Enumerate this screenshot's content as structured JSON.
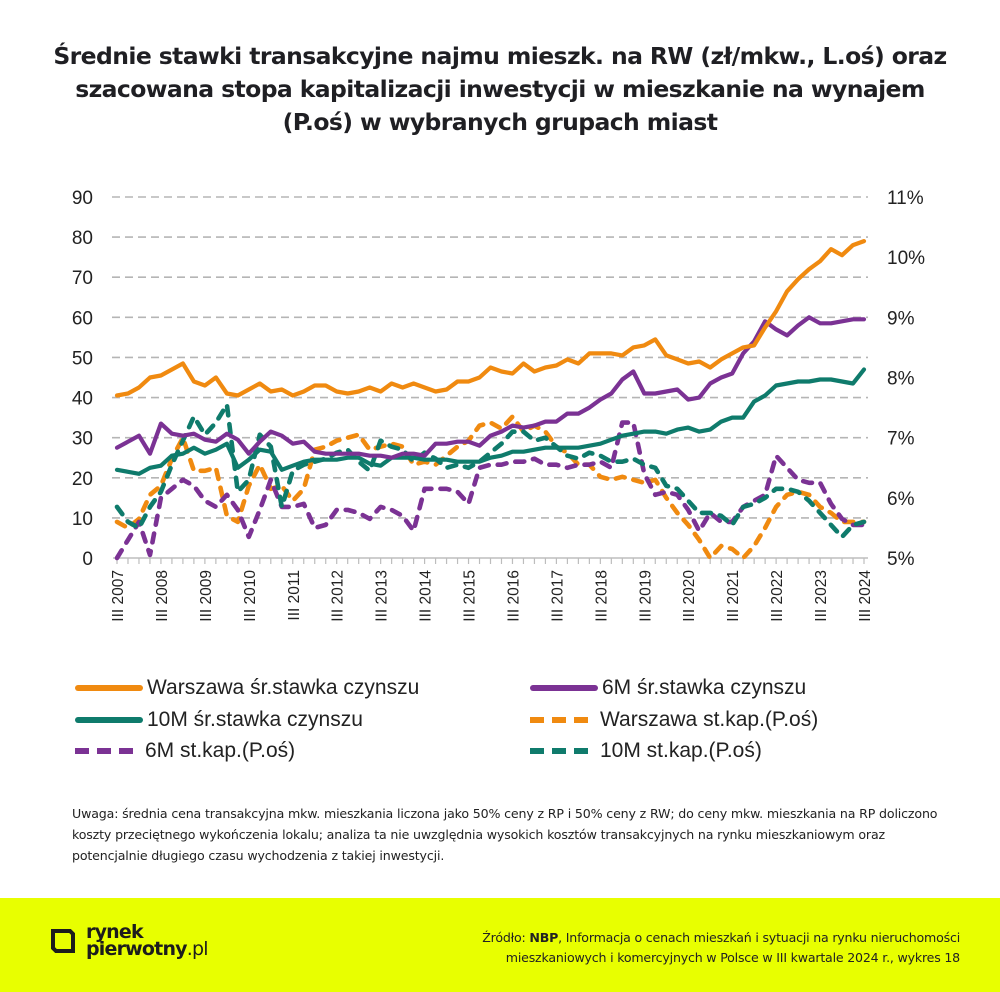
{
  "title_lines": [
    "Średnie stawki transakcyjne najmu mieszk. na RW (zł/mkw., L.oś) oraz",
    "szacowana stopa kapitalizacji inwestycji w mieszkanie na wynajem",
    "(P.oś) w wybranych grupach miast"
  ],
  "chart_data": {
    "type": "line",
    "title": "Średnie stawki transakcyjne najmu mieszk. na RW (zł/mkw., L.oś) oraz szacowana stopa kapitalizacji inwestycji w mieszkanie na wynajem (P.oś) w wybranych grupach miast",
    "xlabel": "",
    "ylabel": "zł/mkw.",
    "y2label": "%",
    "ylim": [
      0,
      90
    ],
    "y2lim": [
      5,
      11
    ],
    "yticks": [
      "0",
      "10",
      "20",
      "30",
      "40",
      "50",
      "60",
      "70",
      "80",
      "90"
    ],
    "y2ticks": [
      "5%",
      "6%",
      "7%",
      "8%",
      "9%",
      "10%",
      "11%"
    ],
    "grid": true,
    "x_start": "III 2007",
    "x_end": "III 2024",
    "x_frequency": "quarterly",
    "xtick_labels": [
      "III 2007",
      "III 2008",
      "III 2009",
      "III 2010",
      "III 2011",
      "III 2012",
      "III 2013",
      "III 2014",
      "III 2015",
      "III 2016",
      "III 2017",
      "III 2018",
      "III 2019",
      "III 2020",
      "III 2021",
      "III 2022",
      "III 2023",
      "III 2024"
    ],
    "legend_position": "bottom",
    "series": [
      {
        "name": "Warszawa śr.stawka czynszu",
        "axis": "left",
        "style": "solid",
        "color": "#f08a10",
        "values": [
          40.5,
          41,
          42.5,
          45,
          45.5,
          47,
          48.5,
          44,
          43,
          45,
          41,
          40.5,
          42,
          43.5,
          41.5,
          42,
          40.5,
          41.5,
          43,
          43,
          41.5,
          41,
          41.5,
          42.5,
          41.5,
          43.5,
          42.5,
          43.5,
          42.5,
          41.5,
          42,
          44,
          44,
          45,
          47.5,
          46.5,
          46,
          48.5,
          46.5,
          47.5,
          48,
          49.5,
          48.5,
          51,
          51,
          51,
          50.5,
          52.5,
          53,
          54.5,
          50.5,
          49.5,
          48.5,
          49,
          47.5,
          49.5,
          51,
          52.5,
          53,
          57.5,
          61.5,
          66.5,
          69.5,
          72,
          74,
          77,
          75.5,
          78,
          79
        ]
      },
      {
        "name": "6M śr.stawka czynszu",
        "axis": "left",
        "style": "solid",
        "color": "#7b3294",
        "values": [
          27.5,
          29,
          30.5,
          26,
          33.5,
          31,
          30.5,
          31,
          29.5,
          29,
          31,
          29.5,
          26,
          29,
          31.5,
          30.5,
          28.5,
          29,
          26.5,
          26,
          26,
          26,
          26,
          25.5,
          25.5,
          25,
          26,
          26,
          25.5,
          28.5,
          28.5,
          29,
          29,
          28,
          30.5,
          31.5,
          33,
          32.5,
          33,
          34,
          34,
          36,
          36,
          37.5,
          39.5,
          41,
          44.5,
          46.5,
          41,
          41,
          41.5,
          42,
          39.5,
          40,
          43.5,
          45,
          46,
          51,
          54,
          59,
          57,
          55.5,
          58,
          60,
          58.5,
          58.5,
          59,
          59.5,
          59.5
        ]
      },
      {
        "name": "10M śr.stawka czynszu",
        "axis": "left",
        "style": "solid",
        "color": "#0f7b6c",
        "values": [
          22,
          21.5,
          21,
          22.5,
          23,
          25.5,
          26,
          27.5,
          26,
          27,
          28.5,
          22.5,
          24.5,
          27,
          26.5,
          22,
          23,
          24,
          24.5,
          24.5,
          24.5,
          25,
          25,
          23.5,
          23,
          25,
          25,
          25,
          24.5,
          24.5,
          24.5,
          24,
          24,
          24,
          25,
          25.5,
          26.5,
          26.5,
          27,
          27.5,
          27.5,
          27.5,
          27.5,
          28,
          28.5,
          29.5,
          30.5,
          31,
          31.5,
          31.5,
          31,
          32,
          32.5,
          31.5,
          32,
          34,
          35,
          35,
          39,
          40.5,
          43,
          43.5,
          44,
          44,
          44.5,
          44.5,
          44,
          43.5,
          47
        ]
      },
      {
        "name": "Warszawa st.kap.(P.oś)",
        "axis": "right",
        "style": "dashed",
        "color": "#f08a10",
        "values": [
          5.6,
          5.5,
          5.65,
          6.05,
          6.2,
          6.65,
          7.0,
          6.45,
          6.45,
          6.5,
          5.7,
          5.6,
          6.2,
          6.55,
          6.15,
          6.2,
          5.95,
          6.15,
          6.8,
          6.85,
          6.95,
          7.0,
          7.05,
          6.8,
          6.85,
          6.9,
          6.85,
          6.55,
          6.6,
          6.55,
          6.7,
          6.85,
          6.95,
          7.2,
          7.25,
          7.15,
          7.35,
          7.1,
          7.2,
          7.1,
          6.85,
          6.75,
          6.55,
          6.55,
          6.35,
          6.3,
          6.35,
          6.3,
          6.25,
          6.3,
          6.0,
          5.75,
          5.55,
          5.3,
          5.0,
          5.2,
          5.15,
          5.0,
          5.2,
          5.5,
          5.85,
          6.05,
          6.1,
          6.05,
          5.85,
          5.75,
          5.6,
          5.6,
          5.6
        ]
      },
      {
        "name": "6M st.kap.(P.oś)",
        "axis": "right",
        "style": "dashed",
        "color": "#7b3294",
        "values": [
          5.0,
          5.3,
          5.6,
          5.05,
          6.0,
          6.15,
          6.3,
          6.2,
          5.95,
          5.85,
          6.05,
          5.8,
          5.35,
          5.8,
          6.3,
          5.85,
          5.85,
          5.9,
          5.5,
          5.55,
          5.8,
          5.8,
          5.75,
          5.65,
          5.85,
          5.8,
          5.7,
          5.45,
          6.15,
          6.15,
          6.15,
          6.1,
          5.9,
          6.5,
          6.55,
          6.55,
          6.6,
          6.6,
          6.65,
          6.55,
          6.55,
          6.5,
          6.55,
          6.55,
          6.6,
          6.5,
          7.25,
          7.25,
          6.4,
          6.05,
          6.1,
          6.05,
          5.8,
          5.45,
          5.75,
          5.6,
          5.6,
          5.85,
          5.95,
          6.05,
          6.7,
          6.5,
          6.3,
          6.25,
          6.25,
          5.9,
          5.65,
          5.55,
          5.55
        ]
      },
      {
        "name": "10M st.kap.(P.oś)",
        "axis": "right",
        "style": "dashed",
        "color": "#0f7b6c",
        "values": [
          5.85,
          5.6,
          5.5,
          5.85,
          6.1,
          6.55,
          6.95,
          7.35,
          7.05,
          7.25,
          7.55,
          6.1,
          6.3,
          7.05,
          6.85,
          5.85,
          6.45,
          6.55,
          6.6,
          6.65,
          6.75,
          6.8,
          6.6,
          6.45,
          6.95,
          6.85,
          6.8,
          6.6,
          6.75,
          6.65,
          6.5,
          6.55,
          6.5,
          6.6,
          6.75,
          6.9,
          7.1,
          7.1,
          6.95,
          7.0,
          6.85,
          6.7,
          6.65,
          6.75,
          6.7,
          6.6,
          6.6,
          6.65,
          6.55,
          6.5,
          6.2,
          6.15,
          5.95,
          5.75,
          5.75,
          5.7,
          5.55,
          5.85,
          5.9,
          6.0,
          6.15,
          6.15,
          6.1,
          5.95,
          5.75,
          5.55,
          5.35,
          5.55,
          5.6
        ]
      }
    ]
  },
  "legend": [
    {
      "label": "Warszawa śr.stawka czynszu",
      "color": "#f08a10",
      "style": "solid"
    },
    {
      "label": "6M śr.stawka czynszu",
      "color": "#7b3294",
      "style": "solid"
    },
    {
      "label": "10M śr.stawka czynszu",
      "color": "#0f7b6c",
      "style": "solid"
    },
    {
      "label": "Warszawa st.kap.(P.oś)",
      "color": "#f08a10",
      "style": "dashed"
    },
    {
      "label": "6M st.kap.(P.oś)",
      "color": "#7b3294",
      "style": "dashed"
    },
    {
      "label": "10M st.kap.(P.oś)",
      "color": "#0f7b6c",
      "style": "dashed"
    }
  ],
  "note": "Uwaga: średnia cena transakcyjna mkw. mieszkania liczona jako 50% ceny z RP i 50% ceny z RW; do ceny mkw. mieszkania na RP doliczono koszty przeciętnego wykończenia lokalu; analiza ta nie uwzględnia wysokich kosztów transakcyjnych na rynku mieszkaniowym oraz potencjalnie długiego czasu wychodzenia z takiej inwestycji.",
  "footer": {
    "background": "#e8ff00",
    "logo_line1": "rynek",
    "logo_line2": "pierwotny",
    "logo_suffix": ".pl",
    "source_prefix": "Źródło: ",
    "source_bold": "NBP",
    "source_line1_rest": ", Informacja o cenach mieszkań i sytuacji na rynku nieruchomości",
    "source_line2": "mieszkaniowych i komercyjnych w Polsce w III kwartale 2024 r., wykres 18"
  }
}
